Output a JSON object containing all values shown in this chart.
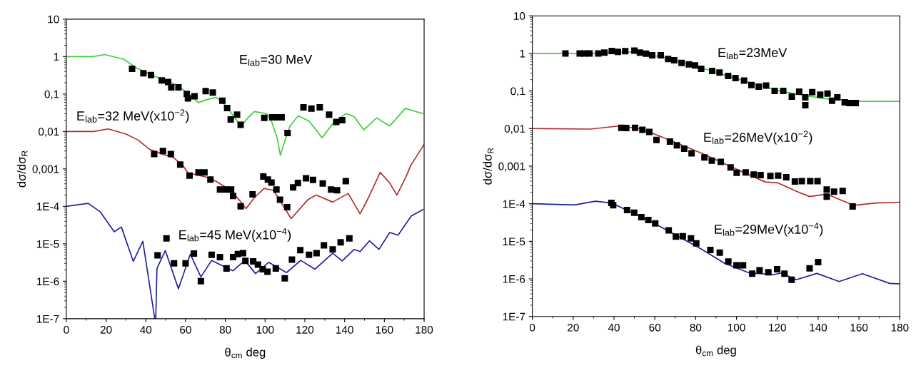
{
  "chart_data": [
    {
      "type": "line",
      "xlabel": "θ$_{cm}$ deg",
      "ylabel": "dσ/dσ$_{R}$",
      "log": "y",
      "xlim": [
        0,
        180
      ],
      "xticks": [
        0,
        20,
        40,
        60,
        80,
        100,
        120,
        140,
        160,
        180
      ],
      "ylim": [
        1e-07,
        10
      ],
      "yticks": [
        {
          "value": 10,
          "label": "10"
        },
        {
          "value": 1,
          "label": "1"
        },
        {
          "value": 0.1,
          "label": "0,1"
        },
        {
          "value": 0.01,
          "label": "0,01"
        },
        {
          "value": 0.001,
          "label": "0,001"
        },
        {
          "value": 0.0001,
          "label": "1E-4"
        },
        {
          "value": 1e-05,
          "label": "1E-5"
        },
        {
          "value": 1e-06,
          "label": "1E-6"
        },
        {
          "value": 1e-07,
          "label": "1E-7"
        }
      ],
      "annotations": [
        "E$_{lab}$=30 MeV",
        "E$_{lab}$=32 MeV(x10$^{−2}$)",
        "E$_{lab}$=45 MeV(x10$^{−4}$)"
      ],
      "series": [
        {
          "color": "#3ccf3c",
          "x": [
            0,
            13.4,
            19.4,
            28.9,
            34.9,
            44.4,
            55.2,
            58.8,
            63.6,
            66.5,
            70.7,
            75.5,
            80.3,
            85,
            88,
            91,
            94.6,
            100.6,
            103,
            106,
            107.7,
            110.1,
            112.5,
            116.7,
            122.1,
            128.7,
            134,
            140.6,
            144.8,
            149.6,
            156.1,
            162.7,
            170.5,
            179.4
          ],
          "values": [
            1,
            1,
            1.13,
            0.85,
            0.51,
            0.3,
            0.18,
            0.13,
            0.081,
            0.059,
            0.071,
            0.081,
            0.049,
            0.022,
            0.014,
            0.022,
            0.034,
            0.03,
            0.02,
            0.0069,
            0.0023,
            0.0059,
            0.014,
            0.026,
            0.019,
            0.0068,
            0.016,
            0.03,
            0.025,
            0.011,
            0.023,
            0.014,
            0.041,
            0.03
          ]
        },
        {
          "color": "#b52a2a",
          "x": [
            0,
            13.7,
            21.1,
            30.1,
            36.1,
            42,
            49.2,
            54,
            58.8,
            61.2,
            70.7,
            75.5,
            82.7,
            86.9,
            90.4,
            94.6,
            99.4,
            104.2,
            113.1,
            121.5,
            125.7,
            134,
            141.8,
            147.8,
            152,
            157.9,
            162.7,
            166.3,
            170.5,
            173.5,
            180
          ],
          "values": [
            0.01,
            0.01,
            0.0117,
            0.0085,
            0.0059,
            0.0033,
            0.0024,
            0.002,
            0.0012,
            0.00078,
            0.0006,
            0.00046,
            0.00027,
            0.00015,
            8.7e-05,
            0.00017,
            0.0003,
            0.00027,
            4.7e-05,
            0.00015,
            0.0002,
            0.00013,
            0.00022,
            6.3e-05,
            0.00017,
            0.00081,
            0.00042,
            0.0002,
            0.00056,
            0.0013,
            0.0045
          ]
        },
        {
          "color": "#1f1f9e",
          "x": [
            0,
            11,
            17,
            24.1,
            27.7,
            33.7,
            38.5,
            44.5,
            45,
            45.6,
            49.8,
            56.4,
            62.4,
            67.7,
            73.1,
            77.9,
            83.9,
            89.8,
            95.2,
            101.8,
            110.8,
            117.9,
            125.1,
            134,
            138.8,
            144.8,
            147.8,
            152.5,
            157.3,
            162.7,
            166.9,
            173.5,
            179.4
          ],
          "values": [
            0.0001,
            0.00012,
            7.2e-05,
            2.1e-05,
            2.8e-05,
            3.4e-06,
            1.17e-05,
            1e-07,
            1e-07,
            2.2e-06,
            6.6e-06,
            6.3e-07,
            5.3e-06,
            1.3e-06,
            3.6e-06,
            2.7e-06,
            1.9e-06,
            3.6e-06,
            1.6e-06,
            3.2e-06,
            1.7e-06,
            3.6e-06,
            2.1e-06,
            5.6e-06,
            3.5e-06,
            7.1e-06,
            6.2e-06,
            1.2e-05,
            7.1e-06,
            2e-05,
            1.7e-05,
            5.5e-05,
            8.2e-05
          ]
        },
        {
          "type": "scatter",
          "marker": "square",
          "color": "#000000",
          "x": [
            33.1,
            38.8,
            42.6,
            48,
            51.2,
            52.8,
            56.4,
            60.6,
            61.2,
            64.5,
            70.1,
            73.7,
            78.5,
            80.9,
            82.7,
            85.9,
            87.7,
            99.6,
            103.6,
            105.4,
            108.3,
            111.3,
            119.3,
            123.3,
            127.5,
            132.2,
            135.8,
            138.8
          ],
          "values": [
            0.47,
            0.36,
            0.32,
            0.23,
            0.21,
            0.15,
            0.15,
            0.1,
            0.076,
            0.087,
            0.12,
            0.11,
            0.066,
            0.042,
            0.021,
            0.028,
            0.015,
            0.023,
            0.024,
            0.024,
            0.024,
            0.0091,
            0.044,
            0.041,
            0.044,
            0.028,
            0.018,
            0.02
          ]
        },
        {
          "type": "scatter",
          "marker": "square",
          "color": "#000000",
          "x": [
            44.2,
            48.6,
            52.6,
            57.3,
            62,
            66.5,
            69.5,
            72.5,
            77.3,
            80.3,
            82.9,
            83.9,
            87.7,
            93.7,
            99.1,
            101.4,
            103.2,
            105.7,
            107.5,
            111.1,
            114.1,
            116.5,
            120.6,
            124.1,
            129,
            133.2,
            136.2,
            140.6
          ],
          "values": [
            0.0025,
            0.003,
            0.0025,
            0.0013,
            0.00066,
            0.00081,
            0.00081,
            0.00052,
            0.00028,
            0.00028,
            0.00028,
            0.00019,
            0.0001,
            0.00021,
            0.00063,
            0.00052,
            0.00043,
            0.00028,
            0.00015,
            9.5e-05,
            0.00032,
            0.00042,
            0.00056,
            0.00051,
            0.00041,
            0.00028,
            0.00027,
            0.00047
          ]
        },
        {
          "type": "scatter",
          "marker": "square",
          "color": "#000000",
          "x": [
            45.9,
            50.4,
            54.2,
            60,
            64.2,
            67.7,
            73.1,
            77.3,
            80.6,
            83.9,
            86.3,
            88.9,
            90.1,
            94,
            96.4,
            98.8,
            101.2,
            105.4,
            109.9,
            113.5,
            117.7,
            122.1,
            125.9,
            129.6,
            134,
            138,
            142.4
          ],
          "values": [
            4.9e-06,
            1.4e-05,
            3e-06,
            3e-06,
            5.5e-06,
            1e-06,
            5.1e-06,
            4.4e-06,
            2.2e-06,
            4.4e-06,
            5.3e-06,
            5.6e-06,
            3.5e-06,
            3.4e-06,
            2.8e-06,
            2.1e-06,
            1.8e-06,
            2.2e-06,
            1.2e-06,
            3.8e-06,
            6.8e-06,
            5.1e-06,
            5.6e-06,
            9.1e-06,
            7.1e-06,
            1.1e-05,
            1.4e-05
          ]
        }
      ]
    },
    {
      "type": "line",
      "xlabel": "θ$_{cm}$ deg",
      "ylabel": "dσ/dσ$_{R}$",
      "log": "y",
      "xlim": [
        0,
        180
      ],
      "xticks": [
        0,
        20,
        40,
        60,
        80,
        100,
        120,
        140,
        160,
        180
      ],
      "ylim": [
        1e-07,
        10
      ],
      "yticks": [
        {
          "value": 10,
          "label": "10"
        },
        {
          "value": 1,
          "label": "1"
        },
        {
          "value": 0.1,
          "label": "0,1"
        },
        {
          "value": 0.01,
          "label": "0,01"
        },
        {
          "value": 0.001,
          "label": "0,001"
        },
        {
          "value": 0.0001,
          "label": "1E-4"
        },
        {
          "value": 1e-05,
          "label": "1E-5"
        },
        {
          "value": 1e-06,
          "label": "1E-6"
        },
        {
          "value": 1e-07,
          "label": "1E-7"
        }
      ],
      "annotations": [
        "E$_{lab}$=23MeV",
        "E$_{lab}$=26MeV(x10$^{−2}$)",
        "E$_{lab}$=29MeV(x10$^{−4}$)"
      ],
      "series": [
        {
          "color": "#3ccf3c",
          "x": [
            0,
            30,
            49.8,
            65.5,
            82.4,
            100.5,
            118.6,
            130.7,
            142.8,
            160.9,
            180
          ],
          "values": [
            1,
            1,
            1.1,
            0.76,
            0.42,
            0.21,
            0.108,
            0.08,
            0.063,
            0.053,
            0.053
          ]
        },
        {
          "color": "#b52a2a",
          "x": [
            0,
            28.4,
            42.9,
            53.7,
            65.8,
            83.9,
            102,
            114,
            120.1,
            129.8,
            135.8,
            144.2,
            151.5,
            157.5,
            168.4,
            180
          ],
          "values": [
            0.01,
            0.0097,
            0.0118,
            0.0097,
            0.0053,
            0.0021,
            0.00074,
            0.00038,
            0.00036,
            0.00021,
            0.000155,
            0.000181,
            0.000123,
            9.1e-05,
            0.000105,
            0.00011
          ]
        },
        {
          "color": "#1f1f9e",
          "x": [
            0,
            20.6,
            30.9,
            38.7,
            58,
            82.2,
            94.2,
            106.3,
            118.3,
            122,
            129.2,
            139.4,
            150.3,
            161.7,
            175,
            180
          ],
          "values": [
            0.0001,
            9.3e-05,
            0.000117,
            0.000105,
            3.39e-05,
            6.5e-06,
            2.6e-06,
            1.44e-06,
            1.3e-06,
            1.44e-06,
            9.5e-07,
            1.4e-06,
            8.5e-07,
            1.38e-06,
            7.6e-07,
            7.4e-07
          ]
        },
        {
          "type": "scatter",
          "marker": "square",
          "color": "#000000",
          "x": [
            16.2,
            23.2,
            25.6,
            28,
            32.3,
            35.3,
            38.9,
            41.9,
            45.5,
            50,
            52.7,
            55.7,
            58.7,
            62.9,
            66.5,
            69.5,
            73.1,
            76.7,
            79.7,
            82.7,
            88.1,
            91.7,
            95.9,
            99.5,
            103.7,
            107.3,
            110.9,
            114.5,
            118.7,
            122.9,
            127.1,
            130.7,
            133.7,
            133.7,
            137.1,
            141,
            144.6,
            146.8,
            149.4,
            153,
            155.4,
            158.4
          ],
          "values": [
            1,
            1,
            1,
            1,
            1,
            1.05,
            1.16,
            1.1,
            1.15,
            1.18,
            1.05,
            0.98,
            0.89,
            0.89,
            0.71,
            0.66,
            0.56,
            0.51,
            0.48,
            0.39,
            0.34,
            0.31,
            0.25,
            0.22,
            0.19,
            0.144,
            0.13,
            0.14,
            0.1,
            0.1,
            0.071,
            0.096,
            0.042,
            0.068,
            0.093,
            0.08,
            0.085,
            0.055,
            0.068,
            0.05,
            0.048,
            0.048
          ]
        },
        {
          "type": "scatter",
          "marker": "square",
          "color": "#000000",
          "x": [
            43.6,
            46,
            50.3,
            53.9,
            57.3,
            60.8,
            67.4,
            70.8,
            74.4,
            78,
            84.3,
            87.9,
            92.3,
            97.1,
            100.1,
            104.5,
            108.4,
            111.8,
            116.6,
            120.4,
            124.4,
            128.6,
            132,
            136.1,
            139.7,
            144.2,
            144.2,
            147.8,
            152,
            156.9
          ],
          "values": [
            0.0105,
            0.0103,
            0.0105,
            0.0093,
            0.0081,
            0.005,
            0.0045,
            0.0036,
            0.0029,
            0.0022,
            0.0017,
            0.0014,
            0.0013,
            0.00093,
            0.00067,
            0.00068,
            0.0006,
            0.00058,
            0.00055,
            0.00056,
            0.00051,
            0.00039,
            0.0004,
            0.0004,
            0.0004,
            0.00024,
            0.000155,
            0.00021,
            0.00022,
            8.5e-05
          ]
        },
        {
          "type": "scatter",
          "marker": "square",
          "color": "#000000",
          "x": [
            38.7,
            39.6,
            46.4,
            49.9,
            53.4,
            56.8,
            60.2,
            66.8,
            70.3,
            73.7,
            77.7,
            80.3,
            87.2,
            91.8,
            96,
            100,
            103.2,
            107.7,
            111.3,
            115.6,
            119.9,
            123.5,
            127,
            135.8,
            140
          ],
          "values": [
            0.000105,
            9.1e-05,
            6.8e-05,
            5.8e-05,
            4.4e-05,
            3.7e-05,
            3e-05,
            1.96e-05,
            1.34e-05,
            1.37e-05,
            1.2e-05,
            8.8e-06,
            5.9e-06,
            5e-06,
            2.9e-06,
            2.3e-06,
            2.3e-06,
            1.38e-06,
            1.7e-06,
            1.5e-06,
            1.8e-06,
            1.38e-06,
            9.5e-07,
            1.9e-06,
            2.8e-06
          ]
        }
      ]
    }
  ]
}
